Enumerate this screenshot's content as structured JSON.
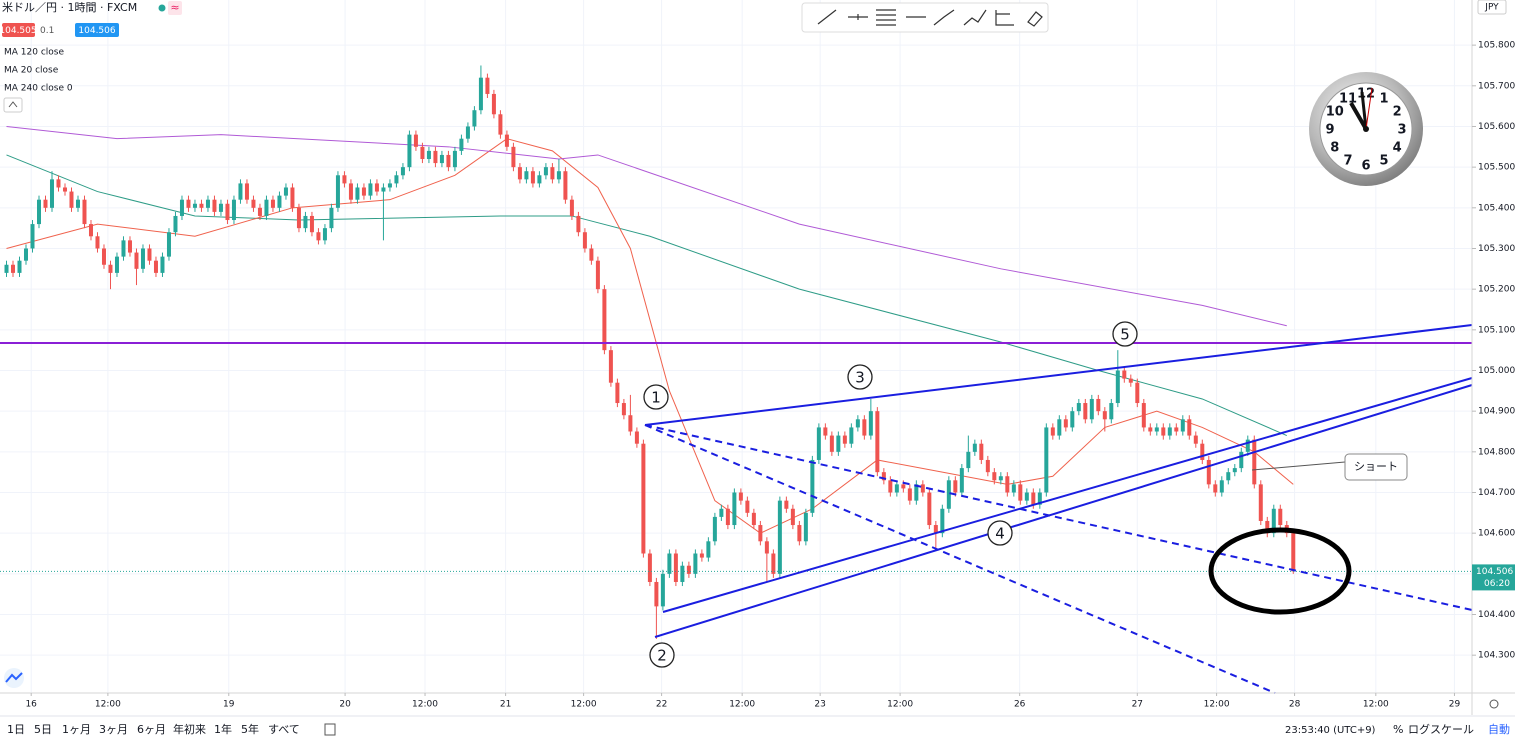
{
  "header": {
    "symbol": "米ドル／円 · 1時間 · FXCM",
    "badge": "≈",
    "bid": "104.505",
    "spread": "0.1",
    "ask": "104.506"
  },
  "chart_data": {
    "type": "candlestick",
    "currency": "JPY",
    "xlim": [
      0,
      226.5
    ],
    "ylim": [
      104.207,
      105.911
    ],
    "xticks": [
      {
        "value": 4.8,
        "label": "16"
      },
      {
        "value": 16.6,
        "label": "12:00"
      },
      {
        "value": 35.2,
        "label": "19"
      },
      {
        "value": 53.1,
        "label": "20"
      },
      {
        "value": 65.4,
        "label": "12:00"
      },
      {
        "value": 77.8,
        "label": "21"
      },
      {
        "value": 89.8,
        "label": "12:00"
      },
      {
        "value": 101.8,
        "label": "22"
      },
      {
        "value": 114.2,
        "label": "12:00"
      },
      {
        "value": 126.2,
        "label": "23"
      },
      {
        "value": 138.5,
        "label": "12:00"
      },
      {
        "value": 156.9,
        "label": "26"
      },
      {
        "value": 175,
        "label": "27"
      },
      {
        "value": 187.2,
        "label": "12:00"
      },
      {
        "value": 199.2,
        "label": "28"
      },
      {
        "value": 211.7,
        "label": "12:00"
      },
      {
        "value": 223.8,
        "label": "29"
      }
    ],
    "yticks": [
      {
        "value": 104.3,
        "label": "104.300"
      },
      {
        "value": 104.4,
        "label": "104.400"
      },
      {
        "value": 104.5,
        "label": "104.500"
      },
      {
        "value": 104.6,
        "label": "104.600"
      },
      {
        "value": 104.7,
        "label": "104.700"
      },
      {
        "value": 104.8,
        "label": "104.800"
      },
      {
        "value": 104.9,
        "label": "104.900"
      },
      {
        "value": 105.0,
        "label": "105.000"
      },
      {
        "value": 105.1,
        "label": "105.100"
      },
      {
        "value": 105.2,
        "label": "105.200"
      },
      {
        "value": 105.3,
        "label": "105.300"
      },
      {
        "value": 105.4,
        "label": "105.400"
      },
      {
        "value": 105.5,
        "label": "105.500"
      },
      {
        "value": 105.6,
        "label": "105.600"
      },
      {
        "value": 105.7,
        "label": "105.700"
      },
      {
        "value": 105.8,
        "label": "105.800"
      }
    ],
    "grid": true,
    "up_color": "#26a69a",
    "down_color": "#ef5350",
    "last_price": 104.506,
    "countdown": "06:20",
    "last_color": "#26a69a",
    "x": [
      1,
      2,
      3,
      4,
      5,
      6,
      7,
      8,
      9,
      10,
      11,
      12,
      13,
      14,
      15,
      16,
      17,
      18,
      19,
      20,
      21,
      22,
      23,
      24,
      25,
      26,
      27,
      28,
      29,
      30,
      31,
      32,
      33,
      34,
      35,
      36,
      37,
      38,
      39,
      40,
      41,
      42,
      43,
      44,
      45,
      46,
      47,
      48,
      49,
      50,
      51,
      52,
      53,
      54,
      55,
      56,
      57,
      58,
      59,
      60,
      61,
      62,
      63,
      64,
      65,
      66,
      67,
      68,
      69,
      70,
      71,
      72,
      73,
      74,
      75,
      76,
      77,
      78,
      79,
      80,
      81,
      82,
      83,
      84,
      85,
      86,
      87,
      88,
      89,
      90,
      91,
      92,
      93,
      94,
      95,
      96,
      97,
      98,
      99,
      100,
      101,
      102,
      103,
      104,
      105,
      106,
      107,
      108,
      109,
      110,
      111,
      112,
      113,
      114,
      115,
      116,
      117,
      118,
      119,
      120,
      121,
      122,
      123,
      124,
      125,
      126,
      127,
      128,
      129,
      130,
      131,
      132,
      133,
      134,
      135,
      136,
      137,
      138,
      139,
      140,
      141,
      142,
      143,
      144,
      145,
      146,
      147,
      148,
      149,
      150,
      151,
      152,
      153,
      154,
      155,
      156,
      157,
      158,
      159,
      160,
      161,
      162,
      163,
      164,
      165,
      166,
      167,
      168,
      169,
      170,
      171,
      172,
      173,
      174,
      175,
      176,
      177,
      178,
      179,
      180,
      181,
      182,
      183,
      184,
      185,
      186,
      187,
      188,
      189,
      190,
      191,
      192,
      193,
      194,
      195,
      196,
      197,
      198,
      199
    ],
    "open": [
      105.24,
      105.26,
      105.24,
      105.27,
      105.3,
      105.36,
      105.42,
      105.4,
      105.47,
      105.45,
      105.44,
      105.4,
      105.42,
      105.36,
      105.33,
      105.3,
      105.26,
      105.24,
      105.28,
      105.32,
      105.29,
      105.25,
      105.3,
      105.27,
      105.24,
      105.28,
      105.34,
      105.38,
      105.42,
      105.4,
      105.41,
      105.4,
      105.42,
      105.39,
      105.41,
      105.37,
      105.42,
      105.46,
      105.42,
      105.4,
      105.38,
      105.42,
      105.4,
      105.43,
      105.45,
      105.4,
      105.35,
      105.38,
      105.34,
      105.32,
      105.35,
      105.4,
      105.48,
      105.46,
      105.42,
      105.45,
      105.43,
      105.46,
      105.44,
      105.45,
      105.46,
      105.48,
      105.5,
      105.58,
      105.55,
      105.52,
      105.54,
      105.51,
      105.53,
      105.5,
      105.54,
      105.57,
      105.6,
      105.64,
      105.72,
      105.68,
      105.63,
      105.58,
      105.55,
      105.5,
      105.47,
      105.49,
      105.46,
      105.48,
      105.5,
      105.47,
      105.49,
      105.42,
      105.38,
      105.34,
      105.3,
      105.27,
      105.2,
      105.05,
      104.97,
      104.92,
      104.89,
      104.85,
      104.82,
      104.55,
      104.48,
      104.42,
      104.5,
      104.55,
      104.48,
      104.52,
      104.5,
      104.55,
      104.54,
      104.58,
      104.64,
      104.66,
      104.62,
      104.7,
      104.68,
      104.65,
      104.62,
      104.58,
      104.55,
      104.5,
      104.68,
      104.66,
      104.62,
      104.58,
      104.65,
      104.78,
      104.86,
      104.84,
      104.8,
      104.84,
      104.82,
      104.86,
      104.88,
      104.84,
      104.9,
      104.75,
      104.73,
      104.7,
      104.72,
      104.71,
      104.68,
      104.72,
      104.7,
      104.62,
      104.6,
      104.66,
      104.73,
      104.7,
      104.76,
      104.8,
      104.82,
      104.78,
      104.75,
      104.73,
      104.74,
      104.7,
      104.72,
      104.68,
      104.7,
      104.67,
      104.7,
      104.86,
      104.84,
      104.88,
      104.86,
      104.9,
      104.92,
      104.88,
      104.93,
      104.9,
      104.88,
      104.92,
      105.0,
      104.98,
      104.97,
      104.92,
      104.86,
      104.85,
      104.86,
      104.84,
      104.86,
      104.85,
      104.88,
      104.84,
      104.82,
      104.78,
      104.72,
      104.7,
      104.73,
      104.75,
      104.76,
      104.8,
      104.83,
      104.72,
      104.63,
      104.6,
      104.66,
      104.62,
      104.6
    ],
    "high": [
      105.27,
      105.27,
      105.28,
      105.31,
      105.37,
      105.43,
      105.43,
      105.49,
      105.48,
      105.46,
      105.45,
      105.43,
      105.43,
      105.37,
      105.34,
      105.31,
      105.27,
      105.29,
      105.33,
      105.33,
      105.3,
      105.31,
      105.31,
      105.28,
      105.29,
      105.35,
      105.39,
      105.43,
      105.43,
      105.42,
      105.42,
      105.43,
      105.43,
      105.42,
      105.42,
      105.43,
      105.47,
      105.47,
      105.43,
      105.41,
      105.43,
      105.43,
      105.44,
      105.46,
      105.46,
      105.41,
      105.39,
      105.39,
      105.35,
      105.36,
      105.41,
      105.49,
      105.49,
      105.47,
      105.46,
      105.46,
      105.47,
      105.47,
      105.46,
      105.47,
      105.49,
      105.51,
      105.59,
      105.59,
      105.56,
      105.55,
      105.55,
      105.54,
      105.54,
      105.55,
      105.58,
      105.61,
      105.65,
      105.75,
      105.73,
      105.69,
      105.64,
      105.59,
      105.56,
      105.51,
      105.5,
      105.5,
      105.49,
      105.51,
      105.51,
      105.52,
      105.5,
      105.43,
      105.39,
      105.35,
      105.31,
      105.28,
      105.21,
      105.06,
      104.98,
      104.93,
      104.94,
      104.86,
      104.83,
      104.56,
      104.49,
      104.51,
      104.56,
      104.56,
      104.53,
      104.53,
      104.56,
      104.56,
      104.59,
      104.65,
      104.67,
      104.67,
      104.71,
      104.71,
      104.69,
      104.66,
      104.63,
      104.59,
      104.56,
      104.69,
      104.69,
      104.67,
      104.63,
      104.66,
      104.79,
      104.87,
      104.87,
      104.85,
      104.85,
      104.85,
      104.87,
      104.89,
      104.89,
      104.93,
      104.91,
      104.76,
      104.74,
      104.73,
      104.73,
      104.72,
      104.73,
      104.73,
      104.71,
      104.63,
      104.67,
      104.74,
      104.74,
      104.77,
      104.84,
      104.83,
      104.83,
      104.79,
      104.76,
      104.75,
      104.75,
      104.73,
      104.73,
      104.71,
      104.71,
      104.71,
      104.87,
      104.87,
      104.89,
      104.89,
      104.91,
      104.93,
      104.93,
      104.94,
      104.94,
      104.91,
      104.93,
      105.05,
      105.01,
      104.99,
      104.98,
      104.93,
      104.87,
      104.87,
      104.87,
      104.87,
      104.87,
      104.89,
      104.89,
      104.85,
      104.83,
      104.79,
      104.73,
      104.74,
      104.76,
      104.77,
      104.81,
      104.84,
      104.84,
      104.73,
      104.64,
      104.67,
      104.67,
      104.63,
      104.61
    ],
    "low": [
      105.23,
      105.23,
      105.23,
      105.26,
      105.29,
      105.35,
      105.39,
      105.39,
      105.44,
      105.43,
      105.39,
      105.39,
      105.35,
      105.32,
      105.29,
      105.25,
      105.2,
      105.23,
      105.27,
      105.28,
      105.21,
      105.24,
      105.26,
      105.23,
      105.23,
      105.27,
      105.33,
      105.37,
      105.39,
      105.39,
      105.39,
      105.39,
      105.38,
      105.38,
      105.36,
      105.36,
      105.41,
      105.41,
      105.39,
      105.37,
      105.37,
      105.39,
      105.39,
      105.42,
      105.39,
      105.34,
      105.34,
      105.33,
      105.31,
      105.31,
      105.34,
      105.39,
      105.45,
      105.41,
      105.41,
      105.42,
      105.42,
      105.43,
      105.32,
      105.44,
      105.45,
      105.47,
      105.49,
      105.54,
      105.51,
      105.51,
      105.5,
      105.5,
      105.49,
      105.49,
      105.53,
      105.56,
      105.59,
      105.63,
      105.67,
      105.62,
      105.57,
      105.54,
      105.49,
      105.46,
      105.46,
      105.45,
      105.45,
      105.47,
      105.46,
      105.46,
      105.41,
      105.37,
      105.33,
      105.29,
      105.26,
      105.19,
      105.04,
      104.96,
      104.91,
      104.88,
      104.84,
      104.81,
      104.54,
      104.47,
      104.34,
      104.41,
      104.49,
      104.47,
      104.47,
      104.49,
      104.49,
      104.53,
      104.53,
      104.57,
      104.63,
      104.61,
      104.61,
      104.67,
      104.64,
      104.61,
      104.57,
      104.48,
      104.49,
      104.49,
      104.65,
      104.61,
      104.57,
      104.57,
      104.64,
      104.77,
      104.83,
      104.79,
      104.79,
      104.81,
      104.81,
      104.85,
      104.83,
      104.83,
      104.74,
      104.72,
      104.69,
      104.69,
      104.7,
      104.67,
      104.67,
      104.69,
      104.61,
      104.56,
      104.59,
      104.65,
      104.69,
      104.69,
      104.75,
      104.79,
      104.77,
      104.74,
      104.72,
      104.72,
      104.69,
      104.69,
      104.67,
      104.67,
      104.66,
      104.66,
      104.69,
      104.83,
      104.83,
      104.85,
      104.85,
      104.89,
      104.87,
      104.87,
      104.89,
      104.85,
      104.87,
      104.91,
      104.97,
      104.96,
      104.91,
      104.85,
      104.84,
      104.84,
      104.83,
      104.83,
      104.84,
      104.84,
      104.83,
      104.81,
      104.77,
      104.71,
      104.69,
      104.69,
      104.72,
      104.74,
      104.75,
      104.79,
      104.71,
      104.62,
      104.59,
      104.59,
      104.61,
      104.59,
      104.5
    ],
    "close": [
      105.26,
      105.24,
      105.27,
      105.3,
      105.36,
      105.42,
      105.4,
      105.47,
      105.45,
      105.44,
      105.4,
      105.42,
      105.36,
      105.33,
      105.3,
      105.26,
      105.24,
      105.28,
      105.32,
      105.29,
      105.25,
      105.3,
      105.27,
      105.24,
      105.28,
      105.34,
      105.38,
      105.42,
      105.4,
      105.41,
      105.4,
      105.42,
      105.39,
      105.41,
      105.37,
      105.42,
      105.46,
      105.42,
      105.4,
      105.38,
      105.42,
      105.4,
      105.43,
      105.45,
      105.4,
      105.35,
      105.38,
      105.34,
      105.32,
      105.35,
      105.4,
      105.48,
      105.46,
      105.42,
      105.45,
      105.43,
      105.46,
      105.44,
      105.45,
      105.46,
      105.48,
      105.5,
      105.58,
      105.55,
      105.52,
      105.54,
      105.51,
      105.53,
      105.5,
      105.54,
      105.57,
      105.6,
      105.64,
      105.72,
      105.68,
      105.63,
      105.58,
      105.55,
      105.5,
      105.47,
      105.49,
      105.46,
      105.48,
      105.5,
      105.47,
      105.49,
      105.42,
      105.38,
      105.34,
      105.3,
      105.27,
      105.2,
      105.05,
      104.97,
      104.92,
      104.89,
      104.85,
      104.82,
      104.55,
      104.48,
      104.42,
      104.5,
      104.55,
      104.48,
      104.52,
      104.5,
      104.55,
      104.54,
      104.58,
      104.64,
      104.66,
      104.62,
      104.7,
      104.68,
      104.65,
      104.62,
      104.58,
      104.55,
      104.5,
      104.68,
      104.66,
      104.62,
      104.58,
      104.65,
      104.78,
      104.86,
      104.84,
      104.8,
      104.84,
      104.82,
      104.86,
      104.88,
      104.84,
      104.9,
      104.75,
      104.73,
      104.7,
      104.72,
      104.71,
      104.68,
      104.72,
      104.7,
      104.62,
      104.6,
      104.66,
      104.73,
      104.7,
      104.76,
      104.8,
      104.82,
      104.78,
      104.75,
      104.73,
      104.74,
      104.7,
      104.72,
      104.68,
      104.7,
      104.67,
      104.7,
      104.86,
      104.84,
      104.88,
      104.86,
      104.9,
      104.92,
      104.88,
      104.93,
      104.9,
      104.88,
      104.92,
      105.0,
      104.98,
      104.97,
      104.92,
      104.86,
      104.85,
      104.86,
      104.84,
      104.86,
      104.85,
      104.88,
      104.84,
      104.82,
      104.78,
      104.72,
      104.7,
      104.73,
      104.75,
      104.76,
      104.8,
      104.83,
      104.72,
      104.63,
      104.6,
      104.66,
      104.62,
      104.6,
      104.506
    ],
    "ma_lines": [
      {
        "name": "MA 120 close",
        "color": "#2e9c87",
        "x": [
          1,
          15,
          30,
          46,
          77,
          88,
          100,
          123,
          154,
          169,
          185,
          198
        ],
        "values": [
          105.53,
          105.44,
          105.38,
          105.37,
          105.38,
          105.38,
          105.33,
          105.2,
          105.07,
          105.0,
          104.93,
          104.84
        ]
      },
      {
        "name": "MA 20 close",
        "color": "#f0624d",
        "x": [
          1,
          15,
          30,
          45,
          60,
          70,
          78,
          85,
          92,
          97,
          103,
          110,
          117,
          125,
          135,
          145,
          155,
          162,
          170,
          178,
          185,
          193,
          199
        ],
        "values": [
          105.3,
          105.36,
          105.33,
          105.4,
          105.42,
          105.48,
          105.57,
          105.54,
          105.45,
          105.3,
          104.95,
          104.68,
          104.6,
          104.66,
          104.78,
          104.75,
          104.72,
          104.74,
          104.86,
          104.9,
          104.86,
          104.8,
          104.72
        ]
      },
      {
        "name": "MA 240 close 0",
        "color": "#b05ad6",
        "x": [
          1,
          18,
          34,
          69,
          86,
          92,
          123,
          154,
          185,
          198
        ],
        "values": [
          105.6,
          105.57,
          105.58,
          105.55,
          105.52,
          105.53,
          105.36,
          105.25,
          105.16,
          105.11
        ]
      }
    ]
  },
  "annotations": {
    "wave_labels": [
      "1",
      "2",
      "3",
      "4",
      "5"
    ],
    "callout": "ショート"
  },
  "clock": {
    "numerals": [
      "12",
      "1",
      "2",
      "3",
      "4",
      "5",
      "6",
      "7",
      "8",
      "9",
      "10",
      "11"
    ]
  },
  "toolbar": {
    "periods": [
      "1日",
      "5日",
      "1ヶ月",
      "3ヶ月",
      "6ヶ月",
      "年初来",
      "1年",
      "5年",
      "すべて"
    ],
    "time": "23:53:40 (UTC+9)",
    "percent": "%",
    "log": "ログスケール",
    "auto": "自動"
  }
}
